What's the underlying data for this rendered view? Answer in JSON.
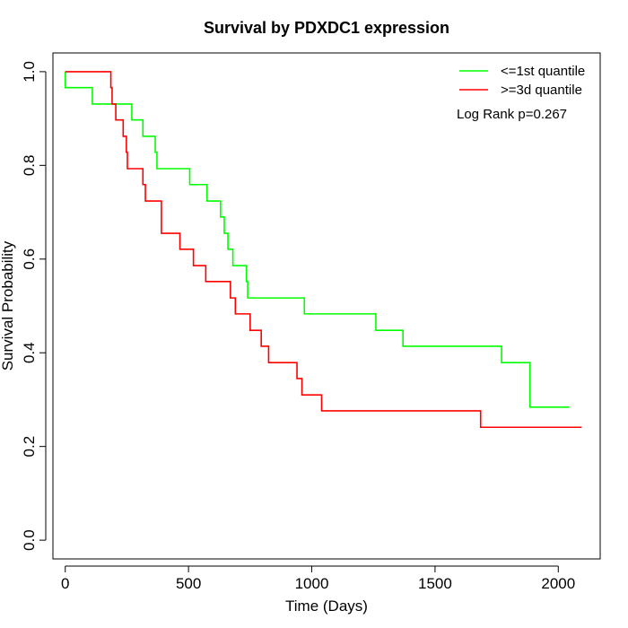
{
  "chart_data": {
    "type": "line",
    "step": true,
    "title": "Survival by PDXDC1 expression",
    "xlabel": "Time (Days)",
    "ylabel": "Survival Probability",
    "xlim": [
      -50,
      2170
    ],
    "ylim": [
      -0.04,
      1.04
    ],
    "x_ticks": [
      0,
      500,
      1000,
      1500,
      2000
    ],
    "y_ticks": [
      0.0,
      0.2,
      0.4,
      0.6,
      0.8,
      1.0
    ],
    "x_tick_labels": [
      "0",
      "500",
      "1000",
      "1500",
      "2000"
    ],
    "y_tick_labels": [
      "0.0",
      "0.2",
      "0.4",
      "0.6",
      "0.8",
      "1.0"
    ],
    "grid": false,
    "legend_position": "top-right",
    "annotation": "Log Rank p=0.267",
    "series": [
      {
        "name": "<=1st quantile",
        "color": "#00ff00",
        "points": [
          [
            0,
            1.0
          ],
          [
            0,
            0.966
          ],
          [
            110,
            0.931
          ],
          [
            270,
            0.897
          ],
          [
            315,
            0.862
          ],
          [
            365,
            0.828
          ],
          [
            372,
            0.793
          ],
          [
            505,
            0.759
          ],
          [
            575,
            0.724
          ],
          [
            630,
            0.69
          ],
          [
            645,
            0.655
          ],
          [
            660,
            0.621
          ],
          [
            680,
            0.586
          ],
          [
            735,
            0.552
          ],
          [
            740,
            0.517
          ],
          [
            970,
            0.483
          ],
          [
            1260,
            0.448
          ],
          [
            1370,
            0.414
          ],
          [
            1770,
            0.379
          ],
          [
            1885,
            0.284
          ],
          [
            2045,
            0.284
          ]
        ]
      },
      {
        "name": ">=3d quantile",
        "color": "#ff0000",
        "points": [
          [
            0,
            1.0
          ],
          [
            185,
            0.966
          ],
          [
            190,
            0.931
          ],
          [
            205,
            0.897
          ],
          [
            235,
            0.862
          ],
          [
            248,
            0.828
          ],
          [
            252,
            0.793
          ],
          [
            315,
            0.759
          ],
          [
            325,
            0.724
          ],
          [
            390,
            0.655
          ],
          [
            465,
            0.621
          ],
          [
            520,
            0.586
          ],
          [
            570,
            0.552
          ],
          [
            670,
            0.517
          ],
          [
            690,
            0.483
          ],
          [
            750,
            0.448
          ],
          [
            795,
            0.414
          ],
          [
            825,
            0.379
          ],
          [
            940,
            0.345
          ],
          [
            960,
            0.31
          ],
          [
            1040,
            0.276
          ],
          [
            1685,
            0.241
          ],
          [
            2095,
            0.241
          ]
        ]
      }
    ]
  }
}
